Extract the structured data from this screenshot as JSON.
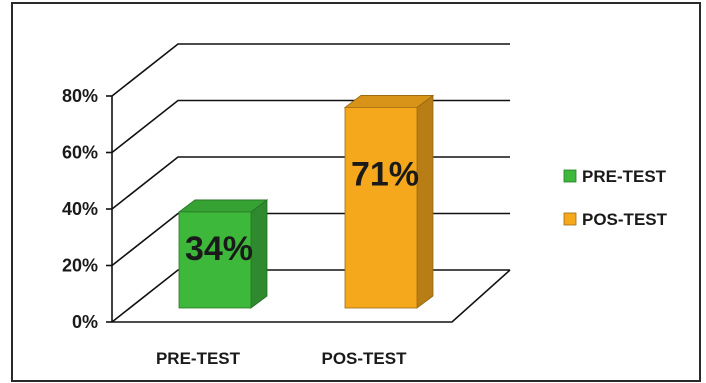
{
  "chart_data": {
    "type": "bar",
    "style": "3d-column",
    "categories": [
      "PRE-TEST",
      "POS-TEST"
    ],
    "values": [
      34,
      71
    ],
    "data_labels": [
      "34%",
      "71%"
    ],
    "series_colors": [
      "#3db83a",
      "#f5a81c"
    ],
    "yticks": [
      "0%",
      "20%",
      "40%",
      "60%",
      "80%"
    ],
    "ylim": [
      0,
      80
    ],
    "grid": true,
    "legend_position": "right",
    "legend": [
      {
        "label": "PRE-TEST",
        "color": "#3db83a"
      },
      {
        "label": "POS-TEST",
        "color": "#f5a81c"
      }
    ]
  }
}
